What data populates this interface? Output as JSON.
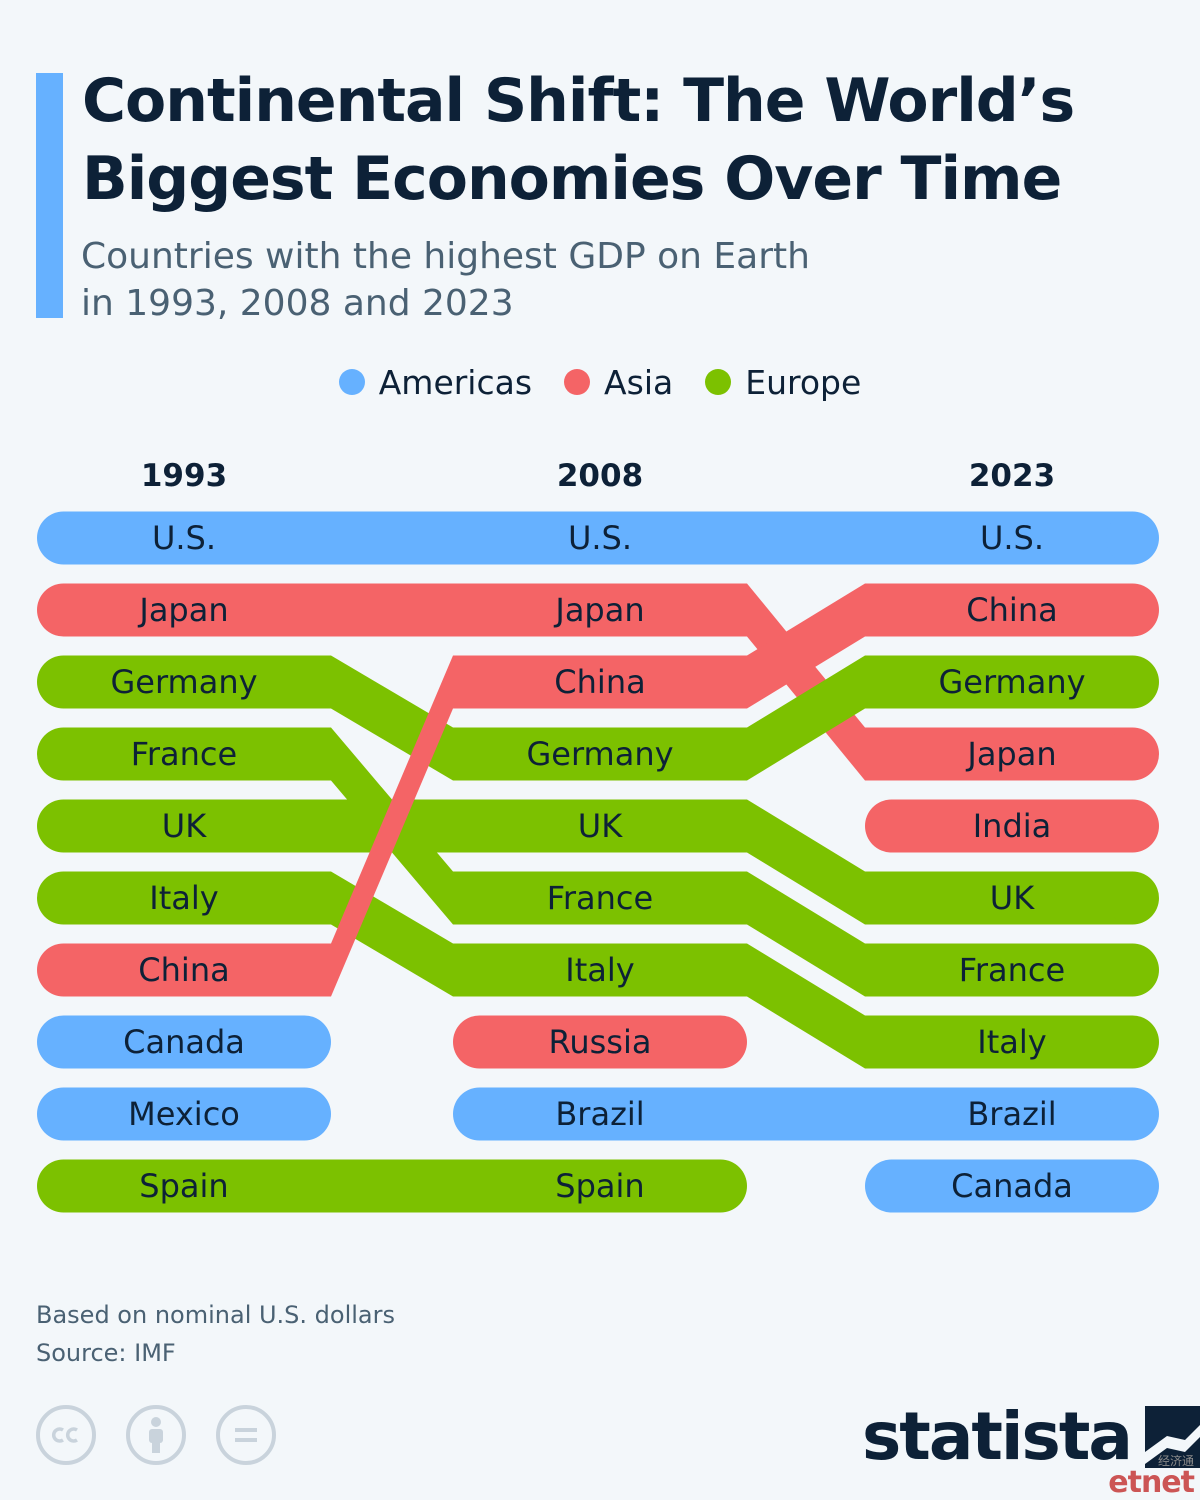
{
  "header": {
    "title": "Continental Shift: The World’s Biggest Economies Over Time",
    "subtitle_line1": "Countries with the highest GDP on Earth",
    "subtitle_line2": "in 1993, 2008 and 2023"
  },
  "legend": [
    {
      "label": "Americas",
      "color": "#66b1ff"
    },
    {
      "label": "Asia",
      "color": "#f46466"
    },
    {
      "label": "Europe",
      "color": "#7cc100"
    }
  ],
  "chart_data": {
    "type": "bump",
    "title": "Continental Shift: The World’s Biggest Economies Over Time",
    "subtitle": "Countries with the highest GDP on Earth in 1993, 2008 and 2023",
    "columns": [
      "1993",
      "2008",
      "2023"
    ],
    "region_colors": {
      "Americas": "#66b1ff",
      "Asia": "#f46466",
      "Europe": "#7cc100"
    },
    "series": [
      {
        "name": "U.S.",
        "region": "Americas",
        "ranks": [
          1,
          1,
          1
        ]
      },
      {
        "name": "Japan",
        "region": "Asia",
        "ranks": [
          2,
          2,
          4
        ]
      },
      {
        "name": "Germany",
        "region": "Europe",
        "ranks": [
          3,
          4,
          3
        ]
      },
      {
        "name": "France",
        "region": "Europe",
        "ranks": [
          4,
          6,
          7
        ]
      },
      {
        "name": "UK",
        "region": "Europe",
        "ranks": [
          5,
          5,
          6
        ]
      },
      {
        "name": "Italy",
        "region": "Europe",
        "ranks": [
          6,
          7,
          8
        ]
      },
      {
        "name": "China",
        "region": "Asia",
        "ranks": [
          7,
          3,
          2
        ]
      },
      {
        "name": "Canada",
        "region": "Americas",
        "ranks": [
          8,
          null,
          10
        ]
      },
      {
        "name": "Mexico",
        "region": "Americas",
        "ranks": [
          9,
          null,
          null
        ]
      },
      {
        "name": "Spain",
        "region": "Europe",
        "ranks": [
          10,
          10,
          null
        ]
      },
      {
        "name": "Russia",
        "region": "Asia",
        "ranks": [
          null,
          8,
          null
        ]
      },
      {
        "name": "Brazil",
        "region": "Americas",
        "ranks": [
          null,
          9,
          9
        ]
      },
      {
        "name": "India",
        "region": "Asia",
        "ranks": [
          null,
          null,
          5
        ]
      }
    ]
  },
  "footer": {
    "note": "Based on nominal U.S. dollars",
    "source": "Source: IMF",
    "brand": "statista",
    "watermark_cn": "经济通",
    "watermark_en": "etnet"
  },
  "license_icons": [
    "cc-icon",
    "attribution-icon",
    "no-derivatives-icon"
  ]
}
